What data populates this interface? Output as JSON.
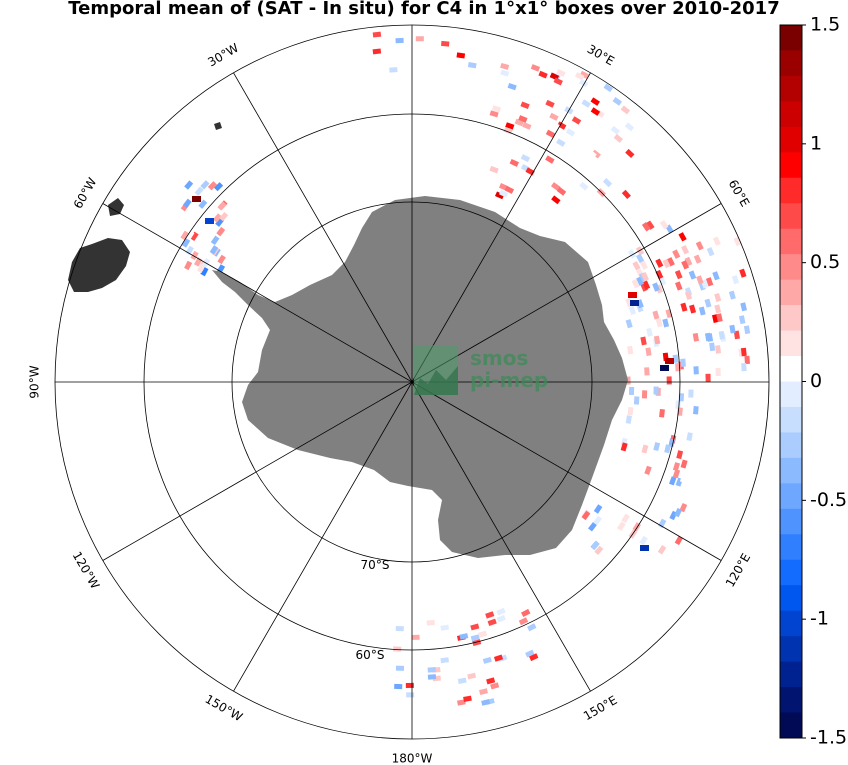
{
  "title": "Temporal mean of (SAT - In situ) for C4 in 1°x1° boxes over 2010-2017",
  "map": {
    "projection": "south polar stereographic",
    "center_label_lat": "70°S",
    "outer_label_lat": "60°S",
    "meridian_labels": [
      {
        "lon": 30,
        "text": "30°E"
      },
      {
        "lon": 60,
        "text": "60°E"
      },
      {
        "lon": 120,
        "text": "120°E"
      },
      {
        "lon": 150,
        "text": "150°E"
      },
      {
        "lon": 180,
        "text": "180°W"
      },
      {
        "lon": -150,
        "text": "150°W"
      },
      {
        "lon": -120,
        "text": "120°W"
      },
      {
        "lon": -90,
        "text": "90°W"
      },
      {
        "lon": -60,
        "text": "60°W"
      },
      {
        "lon": -30,
        "text": "30°W"
      }
    ],
    "land_color": "#808080",
    "grid_color": "#000000"
  },
  "logo": {
    "line1": "smos",
    "line2": "pi-mep",
    "color": "#3f8a5a"
  },
  "colorbar": {
    "min": -1.5,
    "max": 1.5,
    "tick_labels": [
      "1.5",
      "1",
      "0.5",
      "0",
      "-0.5",
      "-1",
      "-1.5"
    ],
    "tick_values": [
      1.5,
      1,
      0.5,
      0,
      -0.5,
      -1,
      -1.5
    ],
    "colors_top_to_bottom": [
      "#7a0000",
      "#9a0000",
      "#b30000",
      "#cc0000",
      "#e00000",
      "#ff0000",
      "#ff2a2a",
      "#ff4a4a",
      "#ff6a6a",
      "#ff8a8a",
      "#ffa8a8",
      "#ffc8c8",
      "#ffe2e2",
      "#ffffff",
      "#e2eeff",
      "#c8deff",
      "#aaccff",
      "#8cbaff",
      "#6ea7ff",
      "#4f93ff",
      "#2f7fff",
      "#146cff",
      "#0057f0",
      "#0044d0",
      "#0033b0",
      "#002290",
      "#001470",
      "#000a55"
    ]
  }
}
